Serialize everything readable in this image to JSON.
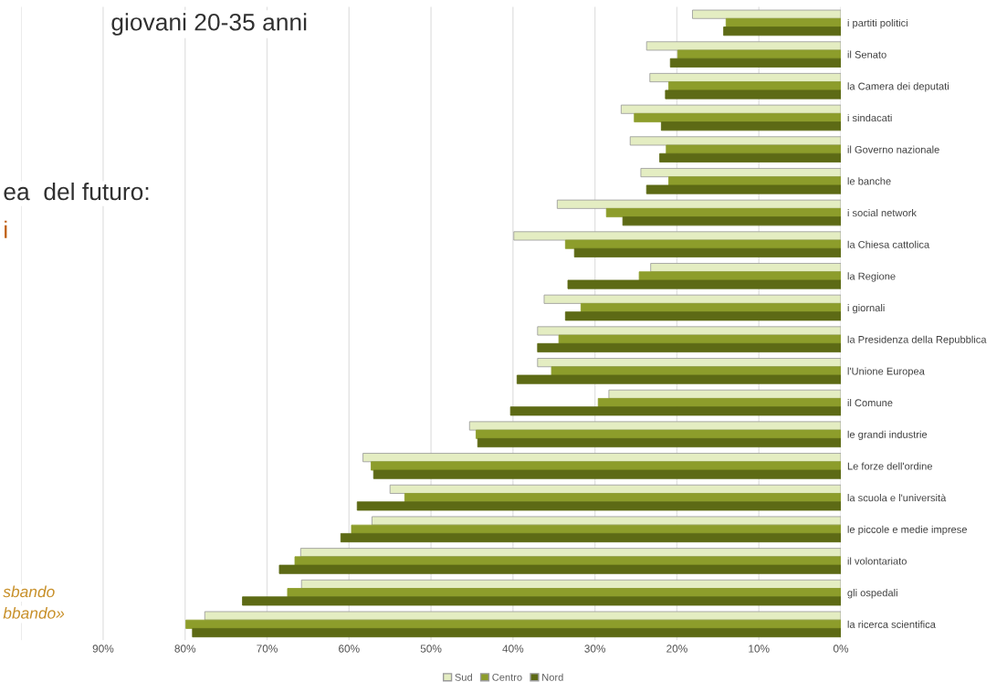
{
  "chart_data": {
    "type": "bar",
    "orientation": "horizontal",
    "title": "giovani 20-35 anni",
    "annotations": [
      "ea  del futuro:",
      "i",
      "sbando",
      "bbando»"
    ],
    "categories": [
      "i partiti politici",
      "il Senato",
      "la Camera dei deputati",
      "i sindacati",
      "il Governo nazionale",
      "le banche",
      "i social network",
      "la Chiesa cattolica",
      "la Regione",
      "i giornali",
      "la Presidenza della Repubblica",
      "l'Unione Europea",
      "il Comune",
      "le grandi industrie",
      "Le forze dell'ordine",
      "la scuola e l'università",
      "le piccole e medie imprese",
      "il volontariato",
      "gli ospedali",
      "la ricerca scientifica"
    ],
    "series": [
      {
        "name": "Sud",
        "color": "#e4edc2",
        "values": [
          18.1,
          23.7,
          23.3,
          26.8,
          25.7,
          24.4,
          34.6,
          39.9,
          23.2,
          36.2,
          37.0,
          37.0,
          28.3,
          45.3,
          58.3,
          55.0,
          57.2,
          65.9,
          65.8,
          77.6
        ]
      },
      {
        "name": "Centro",
        "color": "#8d9d2b",
        "values": [
          14.0,
          19.9,
          21.0,
          25.2,
          21.3,
          21.0,
          28.6,
          33.6,
          24.6,
          31.7,
          34.4,
          35.3,
          29.6,
          44.5,
          57.3,
          53.2,
          59.7,
          66.6,
          67.5,
          79.9
        ]
      },
      {
        "name": "Nord",
        "color": "#5d6a15",
        "values": [
          14.3,
          20.8,
          21.4,
          21.9,
          22.1,
          23.7,
          26.6,
          32.5,
          33.3,
          33.6,
          37.0,
          39.5,
          40.3,
          44.3,
          57.0,
          59.0,
          61.0,
          68.5,
          73.0,
          79.1
        ]
      }
    ],
    "xlim": [
      100,
      0
    ],
    "xticks": [
      {
        "value": 100,
        "label": null
      },
      {
        "value": 90,
        "label": "90%"
      },
      {
        "value": 80,
        "label": "80%"
      },
      {
        "value": 70,
        "label": "70%"
      },
      {
        "value": 60,
        "label": "60%"
      },
      {
        "value": 50,
        "label": "50%"
      },
      {
        "value": 40,
        "label": "40%"
      },
      {
        "value": 30,
        "label": "30%"
      },
      {
        "value": 20,
        "label": "20%"
      },
      {
        "value": 10,
        "label": "10%"
      },
      {
        "value": 0,
        "label": "0%"
      }
    ],
    "grid": "x",
    "legend": "bottom"
  }
}
